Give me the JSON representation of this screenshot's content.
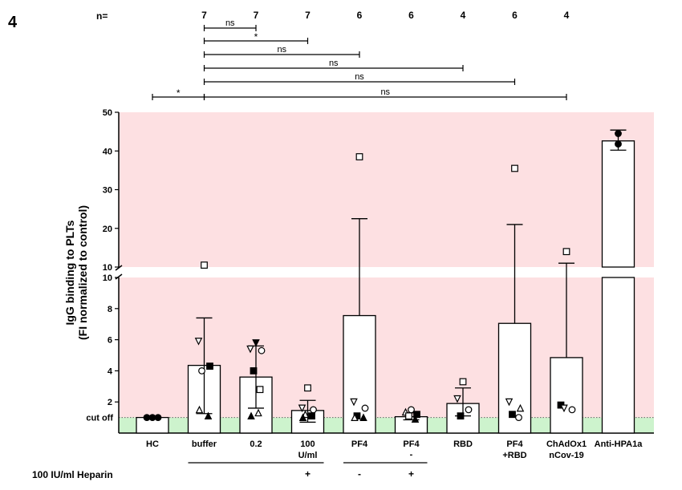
{
  "panel_label": "4",
  "n_label": "n=",
  "heparin_label": "100 IU/ml Heparin",
  "chart_data": {
    "type": "bar",
    "title": "",
    "xlabel": "",
    "ylabel": "IgG binding to PLTs",
    "ylabel2": "(FI normalized to control)",
    "y_axis_break": true,
    "ylim_lower": [
      0,
      10
    ],
    "ylim_upper": [
      10,
      50
    ],
    "yticks_lower": [
      "2",
      "4",
      "6",
      "8",
      "10"
    ],
    "yticks_upper": [
      "10",
      "20",
      "30",
      "40",
      "50"
    ],
    "cutoff_label": "cut off",
    "cutoff_value": 1.0,
    "shading": {
      "above_cutoff": "#fde0e2",
      "below_cutoff": "#cdf3cd"
    },
    "categories": [
      {
        "name": "HC",
        "line2": "",
        "n": "",
        "mean": 1.0,
        "sd_low": null,
        "sd_high": null,
        "points": [
          {
            "s": "circle-filled",
            "y": 1.0
          },
          {
            "s": "circle-filled",
            "y": 1.0
          },
          {
            "s": "circle-filled",
            "y": 1.0
          }
        ]
      },
      {
        "name": "buffer",
        "line2": "",
        "n": "7",
        "mean": 4.35,
        "sd_low": 1.25,
        "sd_high": 7.4,
        "points": [
          {
            "s": "square-open",
            "y": 10.5
          },
          {
            "s": "triangle-down-open",
            "y": 5.9
          },
          {
            "s": "square-filled",
            "y": 4.3
          },
          {
            "s": "circle-open",
            "y": 4.0
          },
          {
            "s": "triangle-filled",
            "y": 1.1
          },
          {
            "s": "triangle-open",
            "y": 1.5
          }
        ]
      },
      {
        "name": "0.2",
        "line2": "",
        "n": "7",
        "mean": 3.6,
        "sd_low": 1.6,
        "sd_high": 5.6,
        "points": [
          {
            "s": "triangle-down-filled",
            "y": 5.8
          },
          {
            "s": "triangle-down-open",
            "y": 5.4
          },
          {
            "s": "circle-open",
            "y": 5.3
          },
          {
            "s": "square-filled",
            "y": 4.0
          },
          {
            "s": "square-open",
            "y": 2.8
          },
          {
            "s": "triangle-filled",
            "y": 1.1
          },
          {
            "s": "triangle-open",
            "y": 1.3
          }
        ]
      },
      {
        "name": "100",
        "line2": "U/ml",
        "n": "7",
        "mean": 1.45,
        "sd_low": 0.7,
        "sd_high": 2.1,
        "points": [
          {
            "s": "square-open",
            "y": 2.9
          },
          {
            "s": "triangle-down-open",
            "y": 1.6
          },
          {
            "s": "circle-open",
            "y": 1.5
          },
          {
            "s": "triangle-open",
            "y": 1.2
          },
          {
            "s": "square-filled",
            "y": 1.1
          },
          {
            "s": "triangle-filled",
            "y": 1.0
          }
        ]
      },
      {
        "name": "PF4",
        "line2": "",
        "n": "6",
        "mean": 7.55,
        "sd_low": null,
        "sd_high": 22.5,
        "points": [
          {
            "s": "square-open",
            "y": 38.5
          },
          {
            "s": "triangle-down-open",
            "y": 2.0
          },
          {
            "s": "circle-open",
            "y": 1.6
          },
          {
            "s": "square-filled",
            "y": 1.1
          },
          {
            "s": "triangle-filled",
            "y": 1.0
          },
          {
            "s": "triangle-open",
            "y": 1.0
          }
        ]
      },
      {
        "name": "PF4",
        "line2": "",
        "n": "6",
        "mean": 1.05,
        "sd_low": 0.85,
        "sd_high": 1.3,
        "points": [
          {
            "s": "circle-open",
            "y": 1.5
          },
          {
            "s": "triangle-open",
            "y": 1.35
          },
          {
            "s": "square-filled",
            "y": 1.2
          },
          {
            "s": "square-open",
            "y": 1.1
          },
          {
            "s": "triangle-filled",
            "y": 0.9
          }
        ]
      },
      {
        "name": "RBD",
        "line2": "",
        "n": "4",
        "mean": 1.9,
        "sd_low": 1.1,
        "sd_high": 2.9,
        "points": [
          {
            "s": "square-open",
            "y": 3.3
          },
          {
            "s": "triangle-down-open",
            "y": 2.2
          },
          {
            "s": "circle-open",
            "y": 1.5
          },
          {
            "s": "square-filled",
            "y": 1.1
          }
        ]
      },
      {
        "name": "PF4",
        "line2": "+RBD",
        "n": "6",
        "mean": 7.05,
        "sd_low": null,
        "sd_high": 21.0,
        "points": [
          {
            "s": "square-open",
            "y": 35.5
          },
          {
            "s": "triangle-down-open",
            "y": 2.0
          },
          {
            "s": "triangle-open",
            "y": 1.6
          },
          {
            "s": "square-filled",
            "y": 1.2
          },
          {
            "s": "circle-open",
            "y": 1.0
          }
        ]
      },
      {
        "name": "ChAdOx1",
        "line2": "nCov-19",
        "n": "4",
        "mean": 4.85,
        "sd_low": null,
        "sd_high": 11.0,
        "points": [
          {
            "s": "square-open",
            "y": 14.0
          },
          {
            "s": "square-filled",
            "y": 1.8
          },
          {
            "s": "circle-open",
            "y": 1.5
          },
          {
            "s": "triangle-down-open",
            "y": 1.6
          }
        ]
      },
      {
        "name": "Anti-HPA1a",
        "line2": "",
        "n": "",
        "mean": 42.6,
        "sd_low": 40.2,
        "sd_high": 45.4,
        "points": [
          {
            "s": "circle-filled",
            "y": 44.5
          },
          {
            "s": "circle-filled",
            "y": 41.8
          }
        ]
      }
    ],
    "heparin_signs": [
      {
        "cat": 3,
        "text": "+"
      },
      {
        "cat": 4,
        "text": "-"
      },
      {
        "cat": 5,
        "text": "+"
      }
    ],
    "heparin_groups": [
      [
        1,
        3
      ],
      [
        4,
        5
      ]
    ],
    "pf4_dash": "-",
    "significance": [
      {
        "from": 0,
        "to": 1,
        "label": "*"
      },
      {
        "from": 1,
        "to": 2,
        "label": "ns"
      },
      {
        "from": 1,
        "to": 3,
        "label": "*"
      },
      {
        "from": 1,
        "to": 4,
        "label": "ns"
      },
      {
        "from": 1,
        "to": 6,
        "label": "ns"
      },
      {
        "from": 1,
        "to": 7,
        "label": "ns"
      },
      {
        "from": 1,
        "to": 8,
        "label": "ns"
      }
    ]
  }
}
